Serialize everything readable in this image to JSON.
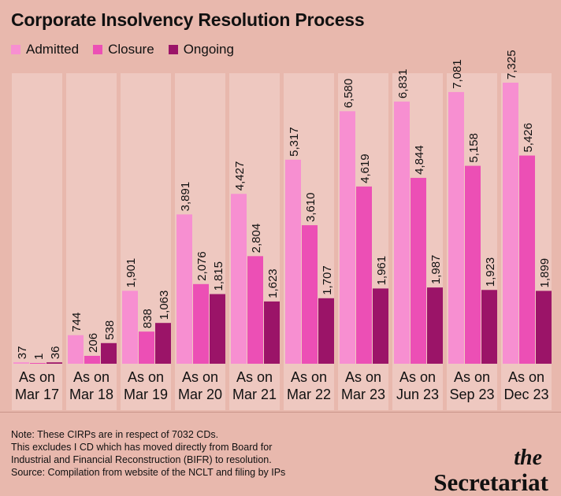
{
  "title": "Corporate Insolvency Resolution Process",
  "legend": [
    {
      "label": "Admitted",
      "color": "#f78fd1"
    },
    {
      "label": "Closure",
      "color": "#ec4fb5"
    },
    {
      "label": "Ongoing",
      "color": "#9b1468"
    }
  ],
  "footnote": {
    "line1": "Note: These CIRPs are in respect of 7032 CDs.",
    "line2": "This excludes I CD which has moved directly from Board for",
    "line3": "Industrial and Financial Reconstruction (BIFR) to resolution.",
    "line4": "Source: Compilation from website of the NCLT and filing by IPs"
  },
  "brand": {
    "the": "the",
    "name": "Secretariat"
  },
  "chart_data": {
    "type": "bar",
    "categories": [
      [
        "As on",
        "Mar 17"
      ],
      [
        "As on",
        "Mar 18"
      ],
      [
        "As on",
        "Mar 19"
      ],
      [
        "As on",
        "Mar 20"
      ],
      [
        "As on",
        "Mar 21"
      ],
      [
        "As on",
        "Mar 22"
      ],
      [
        "As on",
        "Mar 23"
      ],
      [
        "As on",
        "Jun 23"
      ],
      [
        "As on",
        "Sep 23"
      ],
      [
        "As on",
        "Dec 23"
      ]
    ],
    "series": [
      {
        "name": "Admitted",
        "color": "#f78fd1",
        "values": [
          37,
          744,
          1901,
          3891,
          4427,
          5317,
          6580,
          6831,
          7081,
          7325
        ]
      },
      {
        "name": "Closure",
        "color": "#ec4fb5",
        "values": [
          1,
          206,
          838,
          2076,
          2804,
          3610,
          4619,
          4844,
          5158,
          5426
        ]
      },
      {
        "name": "Ongoing",
        "color": "#9b1468",
        "values": [
          36,
          538,
          1063,
          1815,
          1623,
          1707,
          1961,
          1987,
          1923,
          1899
        ]
      }
    ],
    "ylim": [
      0,
      7325
    ],
    "grid": false,
    "legend_position": "top-left"
  }
}
